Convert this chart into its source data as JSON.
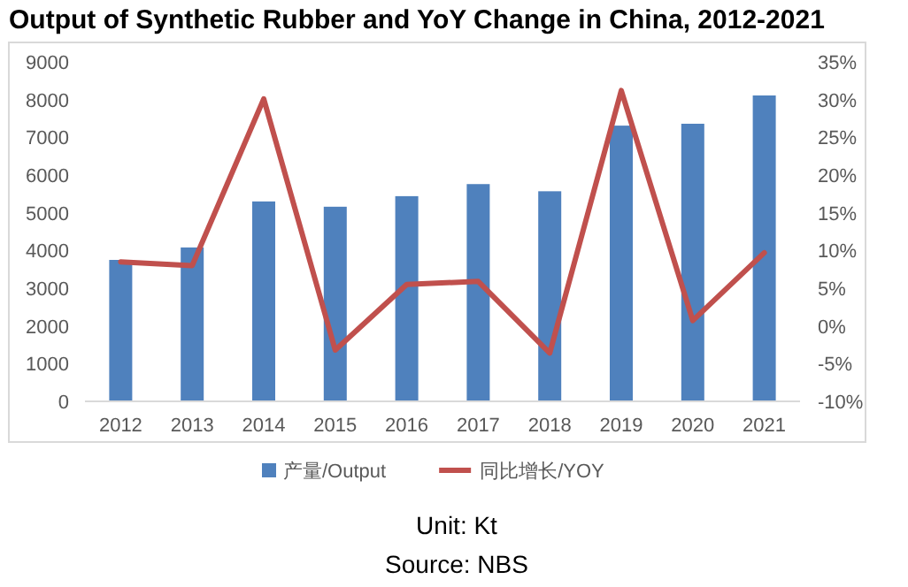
{
  "chart_data": {
    "type": "bar",
    "title": "Output of Synthetic Rubber and YoY Change in China, 2012-2021",
    "categories": [
      "2012",
      "2013",
      "2014",
      "2015",
      "2016",
      "2017",
      "2018",
      "2019",
      "2020",
      "2021"
    ],
    "series": [
      {
        "name": "产量/Output",
        "color": "#4f81bd",
        "values": [
          3750,
          4080,
          5300,
          5160,
          5440,
          5760,
          5570,
          7310,
          7360,
          8110
        ]
      },
      {
        "name": "同比增长/YOY",
        "type": "line",
        "axis": "y2",
        "color": "#c0504d",
        "values": [
          8.5,
          8.0,
          30.1,
          -3.2,
          5.5,
          5.9,
          -3.6,
          31.2,
          0.7,
          9.7
        ]
      }
    ],
    "ylim": [
      0,
      9000
    ],
    "yticks": [
      0,
      1000,
      2000,
      3000,
      4000,
      5000,
      6000,
      7000,
      8000,
      9000
    ],
    "y2lim": [
      -10,
      35
    ],
    "y2ticks": [
      {
        "value": -10,
        "label": "-10%"
      },
      {
        "value": -5,
        "label": "-5%"
      },
      {
        "value": 0,
        "label": "0%"
      },
      {
        "value": 5,
        "label": "5%"
      },
      {
        "value": 10,
        "label": "10%"
      },
      {
        "value": 15,
        "label": "15%"
      },
      {
        "value": 20,
        "label": "20%"
      },
      {
        "value": 25,
        "label": "25%"
      },
      {
        "value": 30,
        "label": "30%"
      },
      {
        "value": 35,
        "label": "35%"
      }
    ],
    "grid": false,
    "legend": "bottom",
    "marker": "none",
    "line_style": "solid",
    "annotations": [
      "Unit: Kt",
      "Source: NBS"
    ]
  }
}
